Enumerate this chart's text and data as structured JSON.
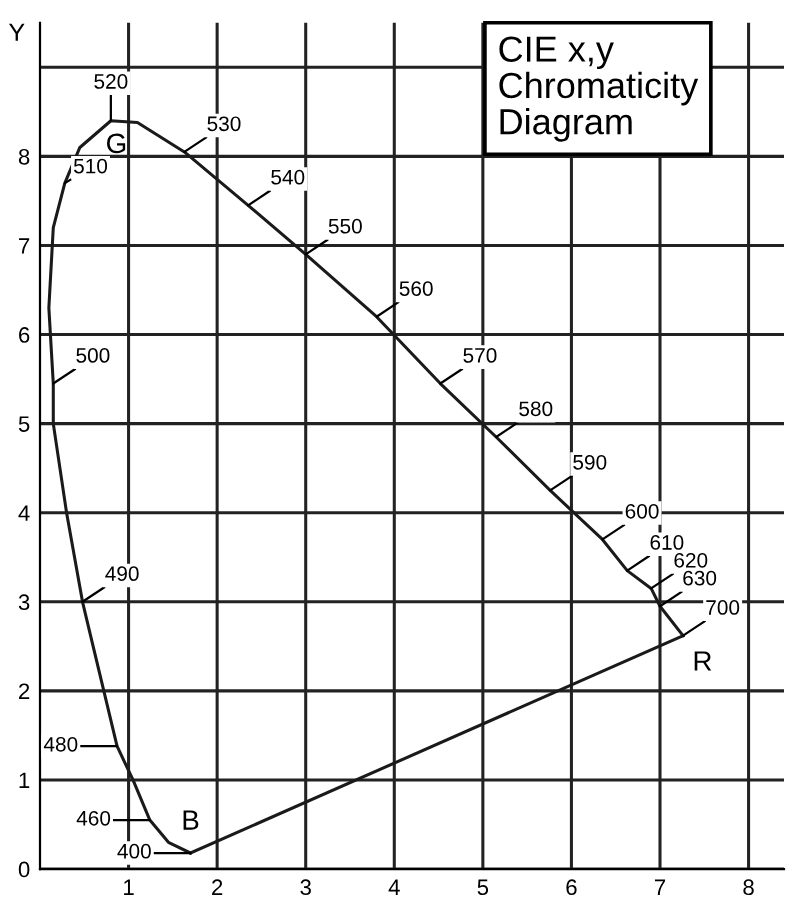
{
  "chart_data": {
    "type": "line",
    "title": "CIE x,y\nChromaticity\nDiagram",
    "ylabel": "Y",
    "series": [
      {
        "color": "#1a1a1a",
        "x": [
          1.7,
          1.45,
          1.24,
          1.05,
          0.87,
          0.6,
          0.48,
          0.3,
          0.15,
          0.15,
          0.1,
          0.15,
          0.28,
          0.45,
          0.8,
          1.1,
          1.63,
          2.35,
          3.0,
          3.8,
          4.52,
          5.15,
          5.76,
          6.35,
          6.63,
          6.9,
          7.0,
          7.26
        ],
        "values": [
          0.18,
          0.3,
          0.55,
          1.0,
          1.38,
          2.5,
          3.0,
          4.0,
          5.0,
          5.45,
          6.3,
          7.2,
          7.7,
          8.1,
          8.4,
          8.38,
          8.05,
          7.45,
          6.9,
          6.2,
          5.45,
          4.85,
          4.25,
          3.7,
          3.35,
          3.15,
          2.95,
          2.62
        ]
      },
      {
        "color": "#1a1a1a",
        "x": [
          1.7,
          7.26
        ],
        "values": [
          0.18,
          2.62
        ]
      }
    ],
    "annotations": [
      {
        "text": "400",
        "x": 1.7,
        "y": 0.18
      },
      {
        "text": "460",
        "x": 1.24,
        "y": 0.55
      },
      {
        "text": "480",
        "x": 0.87,
        "y": 1.38
      },
      {
        "text": "490",
        "x": 0.48,
        "y": 3.0
      },
      {
        "text": "500",
        "x": 0.15,
        "y": 5.45
      },
      {
        "text": "510",
        "x": 0.28,
        "y": 7.7
      },
      {
        "text": "520",
        "x": 0.8,
        "y": 8.4
      },
      {
        "text": "530",
        "x": 1.63,
        "y": 8.05
      },
      {
        "text": "540",
        "x": 2.35,
        "y": 7.45
      },
      {
        "text": "550",
        "x": 3.0,
        "y": 6.9
      },
      {
        "text": "560",
        "x": 3.8,
        "y": 6.2
      },
      {
        "text": "570",
        "x": 4.52,
        "y": 5.45
      },
      {
        "text": "580",
        "x": 5.15,
        "y": 4.85
      },
      {
        "text": "590",
        "x": 5.76,
        "y": 4.25
      },
      {
        "text": "600",
        "x": 6.35,
        "y": 3.7
      },
      {
        "text": "610",
        "x": 6.63,
        "y": 3.35
      },
      {
        "text": "620",
        "x": 6.9,
        "y": 3.15
      },
      {
        "text": "630",
        "x": 7.0,
        "y": 2.95
      },
      {
        "text": "700",
        "x": 7.26,
        "y": 2.62
      },
      "G",
      "B",
      "R"
    ],
    "xlim": [
      0,
      8.4
    ],
    "ylim": [
      0,
      9.5
    ],
    "xticks": [
      1,
      2,
      3,
      4,
      5,
      6,
      7,
      8
    ],
    "yticks": [
      0,
      1,
      2,
      3,
      4,
      5,
      6,
      7,
      8,
      {
        "value": 9,
        "label": null
      }
    ],
    "grid": true,
    "marker": "none",
    "line_style": "solid"
  }
}
